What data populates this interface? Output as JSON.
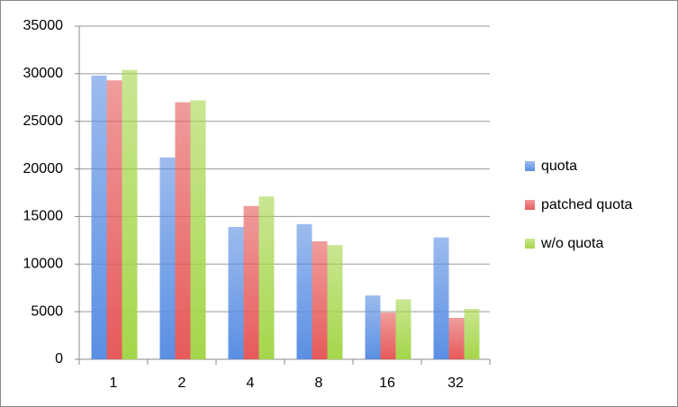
{
  "chart_data": {
    "type": "bar",
    "categories": [
      "1",
      "2",
      "4",
      "8",
      "16",
      "32"
    ],
    "series": [
      {
        "name": "quota",
        "color": "#5b8fe3",
        "values": [
          29800,
          21200,
          13900,
          14200,
          6700,
          12800
        ]
      },
      {
        "name": "patched quota",
        "color": "#e65a5a",
        "values": [
          29300,
          27000,
          16100,
          12400,
          4900,
          4350
        ]
      },
      {
        "name": "w/o quota",
        "color": "#a5d64a",
        "values": [
          30400,
          27200,
          17100,
          12000,
          6300,
          5300
        ]
      }
    ],
    "ylim": [
      0,
      35000
    ],
    "yticks": [
      0,
      5000,
      10000,
      15000,
      20000,
      25000,
      30000,
      35000
    ],
    "grid": true,
    "legend": "right"
  }
}
